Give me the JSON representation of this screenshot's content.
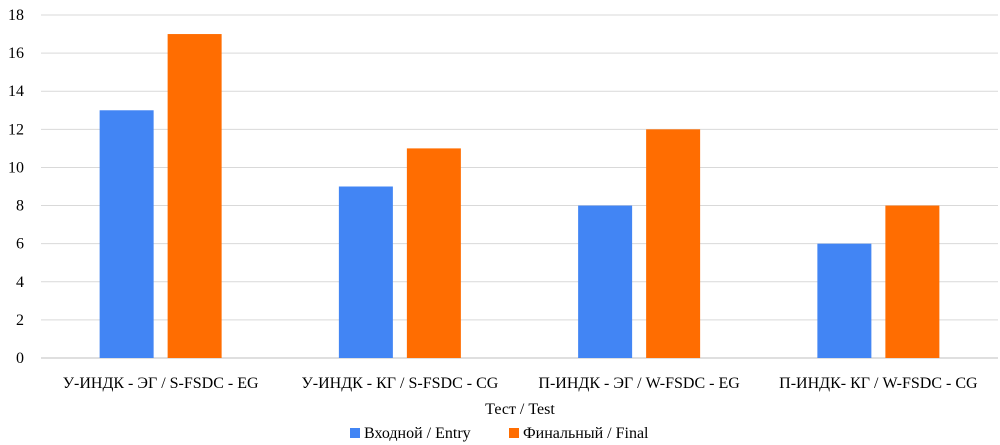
{
  "chart_data": {
    "type": "bar",
    "categories": [
      "У-ИНДК - ЭГ / S-FSDC - EG",
      "У-ИНДК - КГ / S-FSDC - CG",
      "П-ИНДК - ЭГ / W-FSDC - EG",
      "П-ИНДК- КГ / W-FSDC - CG"
    ],
    "series": [
      {
        "name": "Входной / Entry",
        "color": "#4285F4",
        "values": [
          13,
          9,
          8,
          6
        ]
      },
      {
        "name": "Финальный / Final",
        "color": "#FF6D01",
        "values": [
          17,
          11,
          12,
          8
        ]
      }
    ],
    "xlabel": "Тест / Test",
    "ylabel": "",
    "ylim": [
      0,
      18
    ],
    "yticks": [
      0,
      2,
      4,
      6,
      8,
      10,
      12,
      14,
      16,
      18
    ],
    "grid": true,
    "legend": "bottom"
  }
}
